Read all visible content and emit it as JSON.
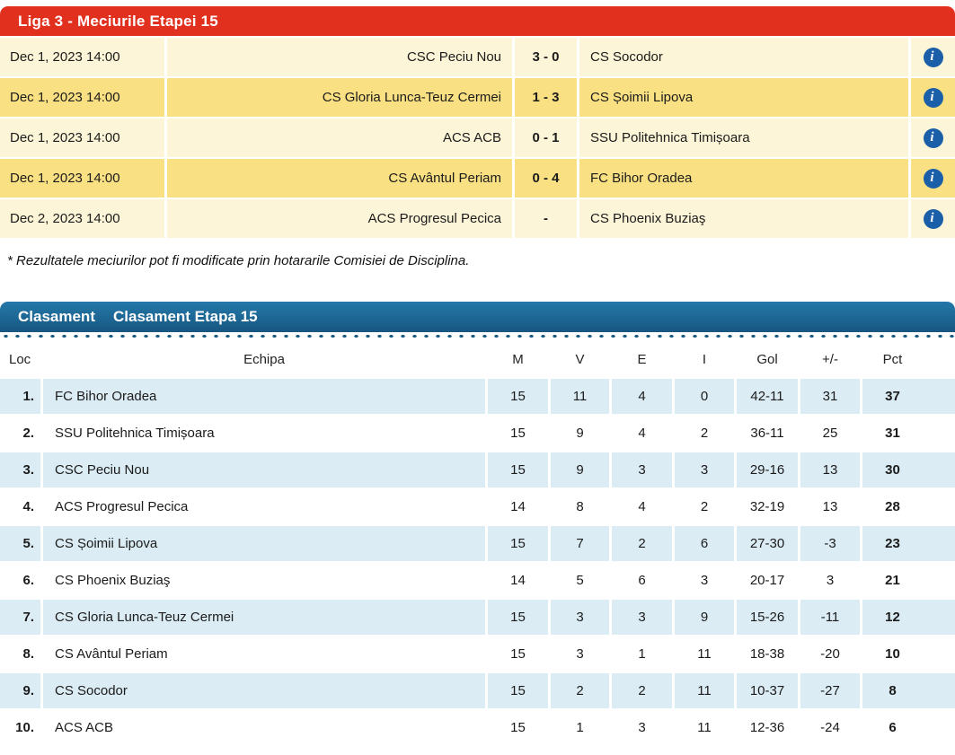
{
  "matches": {
    "title": "Liga 3 - Meciurile Etapei 15",
    "info_icon_glyph": "i",
    "rows": [
      {
        "date": "Dec 1, 2023 14:00",
        "home": "CSC Peciu Nou",
        "score": "3 - 0",
        "away": "CS Socodor"
      },
      {
        "date": "Dec 1, 2023 14:00",
        "home": "CS Gloria Lunca-Teuz Cermei",
        "score": "1 - 3",
        "away": "CS Șoimii Lipova"
      },
      {
        "date": "Dec 1, 2023 14:00",
        "home": "ACS ACB",
        "score": "0 - 1",
        "away": "SSU Politehnica Timișoara"
      },
      {
        "date": "Dec 1, 2023 14:00",
        "home": "CS Avântul Periam",
        "score": "0 - 4",
        "away": "FC Bihor Oradea"
      },
      {
        "date": "Dec 2, 2023 14:00",
        "home": "ACS Progresul Pecica",
        "score": "-",
        "away": "CS Phoenix Buziaş"
      }
    ],
    "footnote": "* Rezultatele meciurilor pot fi modificate prin hotararile Comisiei de Disciplina."
  },
  "standings": {
    "title_left": "Clasament",
    "title_right": "Clasament Etapa 15",
    "columns": [
      "Loc",
      "Echipa",
      "M",
      "V",
      "E",
      "I",
      "Gol",
      "+/-",
      "Pct"
    ],
    "rows": [
      {
        "loc": "1.",
        "team": "FC Bihor Oradea",
        "m": "15",
        "v": "11",
        "e": "4",
        "i": "0",
        "gol": "42-11",
        "diff": "31",
        "pct": "37"
      },
      {
        "loc": "2.",
        "team": "SSU Politehnica Timișoara",
        "m": "15",
        "v": "9",
        "e": "4",
        "i": "2",
        "gol": "36-11",
        "diff": "25",
        "pct": "31"
      },
      {
        "loc": "3.",
        "team": "CSC Peciu Nou",
        "m": "15",
        "v": "9",
        "e": "3",
        "i": "3",
        "gol": "29-16",
        "diff": "13",
        "pct": "30"
      },
      {
        "loc": "4.",
        "team": "ACS Progresul Pecica",
        "m": "14",
        "v": "8",
        "e": "4",
        "i": "2",
        "gol": "32-19",
        "diff": "13",
        "pct": "28"
      },
      {
        "loc": "5.",
        "team": "CS Șoimii Lipova",
        "m": "15",
        "v": "7",
        "e": "2",
        "i": "6",
        "gol": "27-30",
        "diff": "-3",
        "pct": "23"
      },
      {
        "loc": "6.",
        "team": "CS Phoenix Buziaş",
        "m": "14",
        "v": "5",
        "e": "6",
        "i": "3",
        "gol": "20-17",
        "diff": "3",
        "pct": "21"
      },
      {
        "loc": "7.",
        "team": "CS Gloria Lunca-Teuz Cermei",
        "m": "15",
        "v": "3",
        "e": "3",
        "i": "9",
        "gol": "15-26",
        "diff": "-11",
        "pct": "12"
      },
      {
        "loc": "8.",
        "team": "CS Avântul Periam",
        "m": "15",
        "v": "3",
        "e": "1",
        "i": "11",
        "gol": "18-38",
        "diff": "-20",
        "pct": "10"
      },
      {
        "loc": "9.",
        "team": "CS Socodor",
        "m": "15",
        "v": "2",
        "e": "2",
        "i": "11",
        "gol": "10-37",
        "diff": "-27",
        "pct": "8"
      },
      {
        "loc": "10.",
        "team": "ACS ACB",
        "m": "15",
        "v": "1",
        "e": "3",
        "i": "11",
        "gol": "12-36",
        "diff": "-24",
        "pct": "6"
      }
    ]
  },
  "colors": {
    "matches_header": "#e1301e",
    "row_cream": "#fcf5d7",
    "row_yellow": "#f9e083",
    "info_icon": "#1a5fa8",
    "standings_header": "#1b6390",
    "row_blue": "#dbecf4",
    "row_white": "#ffffff"
  }
}
